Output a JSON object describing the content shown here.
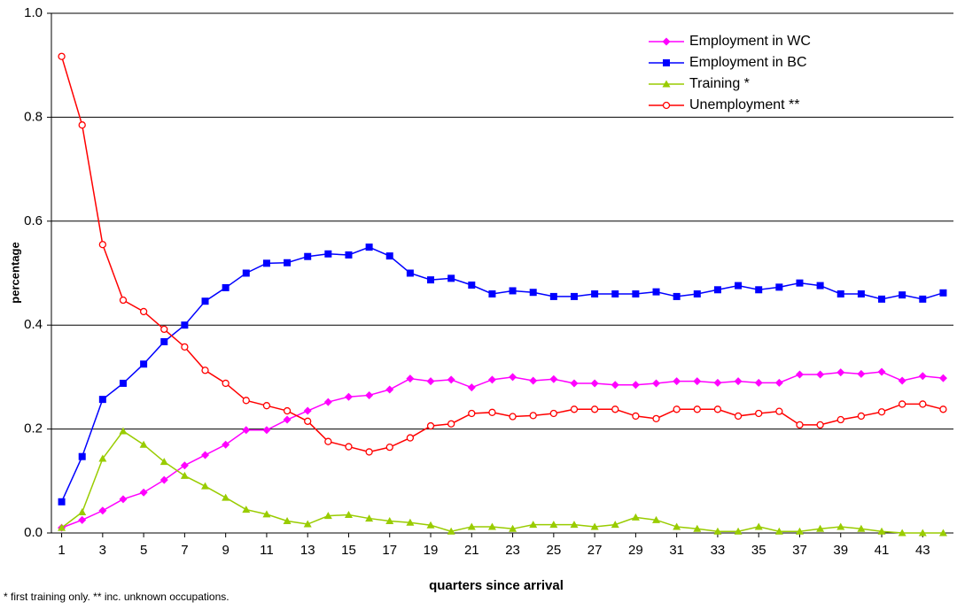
{
  "chart_data": {
    "type": "line",
    "xlabel": "quarters since arrival",
    "ylabel": "percentage",
    "footnote": "* first training only.  ** inc. unknown occupations.",
    "x": [
      1,
      2,
      3,
      4,
      5,
      6,
      7,
      8,
      9,
      10,
      11,
      12,
      13,
      14,
      15,
      16,
      17,
      18,
      19,
      20,
      21,
      22,
      23,
      24,
      25,
      26,
      27,
      28,
      29,
      30,
      31,
      32,
      33,
      34,
      35,
      36,
      37,
      38,
      39,
      40,
      41,
      42,
      43,
      44
    ],
    "xlim": [
      0.5,
      44.5
    ],
    "xticks": [
      1,
      3,
      5,
      7,
      9,
      11,
      13,
      15,
      17,
      19,
      21,
      23,
      25,
      27,
      29,
      31,
      33,
      35,
      37,
      39,
      41,
      43
    ],
    "ylim": [
      0,
      1
    ],
    "yticks": [
      {
        "value": 0,
        "label": "0.0"
      },
      {
        "value": 0.2,
        "label": "0.2"
      },
      {
        "value": 0.4,
        "label": "0.4"
      },
      {
        "value": 0.6,
        "label": "0.6"
      },
      {
        "value": 0.8,
        "label": "0.8"
      },
      {
        "value": 1,
        "label": "1.0"
      }
    ],
    "grid": true,
    "legend": "upper right",
    "series": [
      {
        "name": "Employment in WC",
        "color": "#ff00ff",
        "marker": "diamond",
        "values": [
          0.01,
          0.025,
          0.043,
          0.065,
          0.078,
          0.102,
          0.13,
          0.15,
          0.17,
          0.198,
          0.198,
          0.218,
          0.235,
          0.252,
          0.262,
          0.265,
          0.276,
          0.297,
          0.292,
          0.295,
          0.28,
          0.295,
          0.3,
          0.293,
          0.296,
          0.288,
          0.288,
          0.285,
          0.285,
          0.288,
          0.292,
          0.292,
          0.289,
          0.292,
          0.289,
          0.289,
          0.305,
          0.305,
          0.309,
          0.306,
          0.31,
          0.293,
          0.302,
          0.298
        ]
      },
      {
        "name": "Employment in BC",
        "color": "#0000ff",
        "marker": "square",
        "values": [
          0.06,
          0.147,
          0.257,
          0.288,
          0.325,
          0.368,
          0.4,
          0.446,
          0.472,
          0.5,
          0.519,
          0.52,
          0.532,
          0.537,
          0.535,
          0.55,
          0.533,
          0.5,
          0.487,
          0.49,
          0.477,
          0.46,
          0.466,
          0.463,
          0.455,
          0.455,
          0.46,
          0.46,
          0.46,
          0.464,
          0.455,
          0.46,
          0.468,
          0.476,
          0.468,
          0.473,
          0.481,
          0.476,
          0.46,
          0.46,
          0.45,
          0.458,
          0.45,
          0.462
        ]
      },
      {
        "name": "Training *",
        "color": "#99cc00",
        "marker": "triangle",
        "values": [
          0.01,
          0.04,
          0.143,
          0.196,
          0.17,
          0.137,
          0.11,
          0.09,
          0.068,
          0.045,
          0.036,
          0.023,
          0.017,
          0.033,
          0.035,
          0.028,
          0.023,
          0.02,
          0.015,
          0.003,
          0.012,
          0.012,
          0.008,
          0.016,
          0.016,
          0.016,
          0.012,
          0.016,
          0.03,
          0.025,
          0.012,
          0.008,
          0.003,
          0.003,
          0.012,
          0.003,
          0.003,
          0.008,
          0.012,
          0.008,
          0.003,
          0,
          0,
          0
        ]
      },
      {
        "name": "Unemployment **",
        "color": "#ff0000",
        "marker": "circle",
        "values": [
          0.917,
          0.785,
          0.555,
          0.448,
          0.426,
          0.392,
          0.358,
          0.313,
          0.288,
          0.255,
          0.245,
          0.235,
          0.215,
          0.176,
          0.166,
          0.156,
          0.165,
          0.183,
          0.206,
          0.21,
          0.23,
          0.232,
          0.224,
          0.226,
          0.23,
          0.238,
          0.238,
          0.238,
          0.225,
          0.22,
          0.238,
          0.238,
          0.238,
          0.225,
          0.23,
          0.234,
          0.208,
          0.208,
          0.218,
          0.225,
          0.233,
          0.248,
          0.248,
          0.238
        ]
      }
    ]
  }
}
